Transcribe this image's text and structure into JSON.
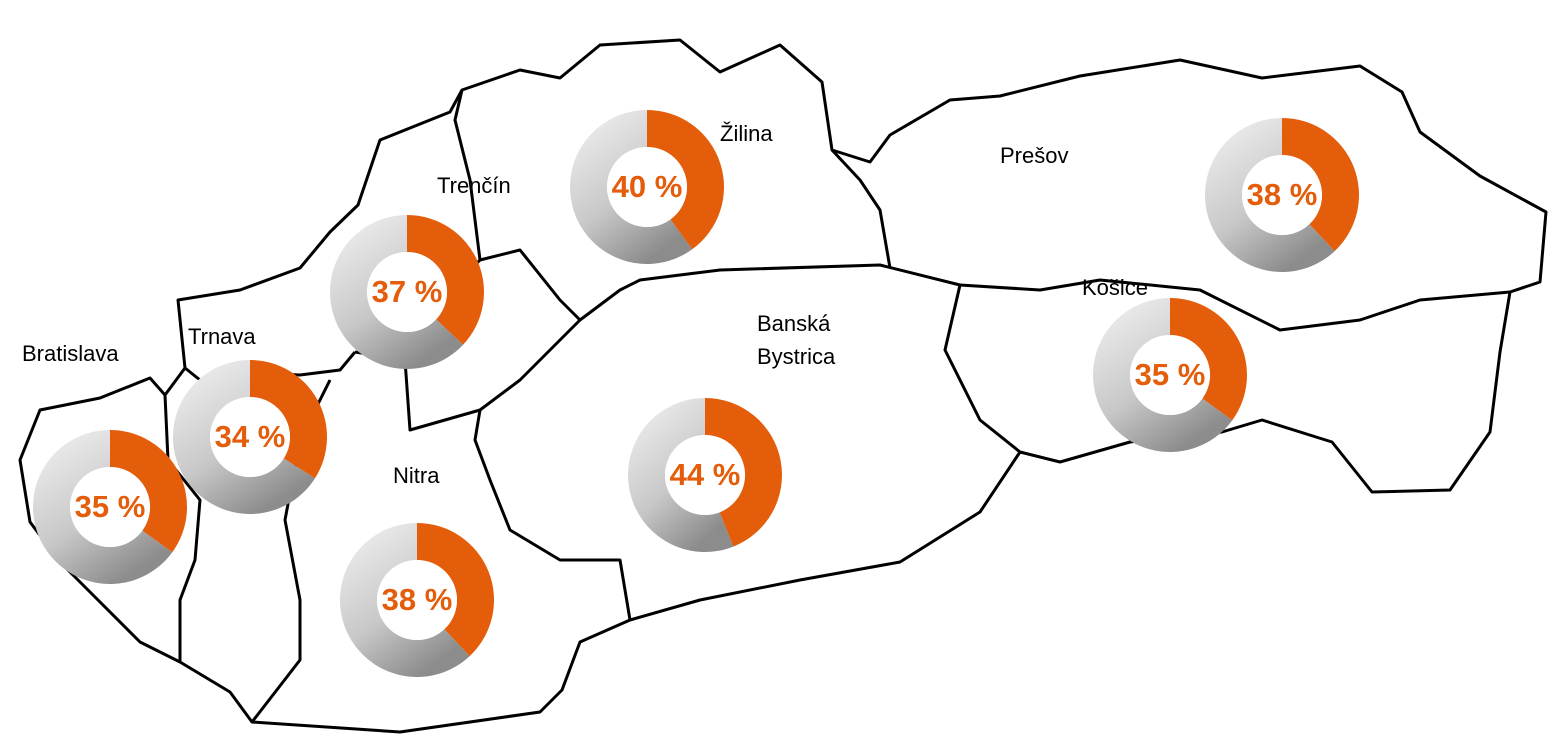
{
  "regions": [
    {
      "name": "Bratislava",
      "value": 35,
      "label": "35 %",
      "color": "#e35d0a"
    },
    {
      "name": "Trnava",
      "value": 34,
      "label": "34 %",
      "color": "#e35d0a"
    },
    {
      "name": "Trenčín",
      "value": 37,
      "label": "37 %",
      "color": "#e35d0a"
    },
    {
      "name": "Žilina",
      "value": 40,
      "label": "40 %",
      "color": "#e35d0a"
    },
    {
      "name": "Prešov",
      "value": 38,
      "label": "38 %",
      "color": "#e35d0a"
    },
    {
      "name": "Košice",
      "value": 35,
      "label": "35 %",
      "color": "#e35d0a"
    },
    {
      "name": [
        "Banská",
        "Bystrica"
      ],
      "value": 44,
      "label": "44 %",
      "color": "#e35d0a"
    },
    {
      "name": "Nitra",
      "value": 38,
      "label": "38 %",
      "color": "#e35d0a"
    }
  ]
}
